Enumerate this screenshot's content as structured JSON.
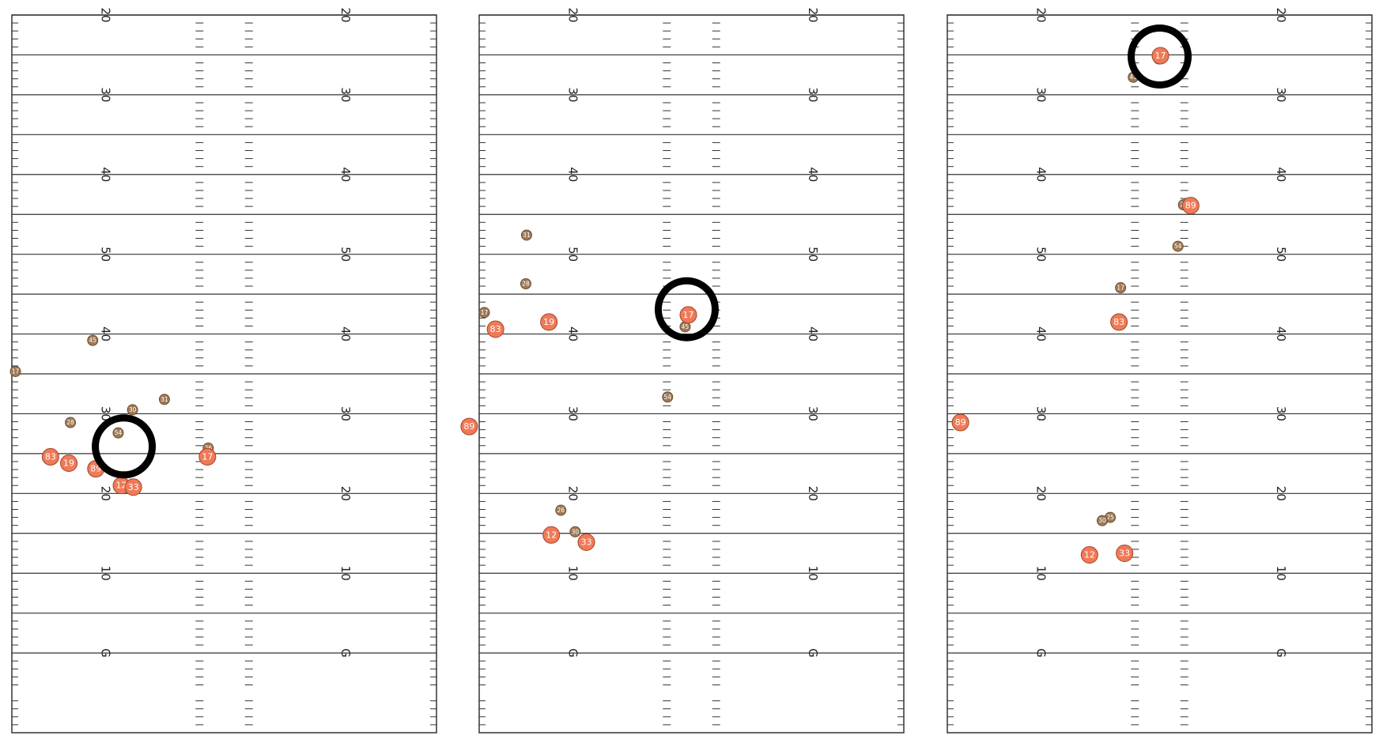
{
  "colors": {
    "offense": "#f07a57",
    "offense_stroke": "#a0432a",
    "defense": "#a07a56",
    "defense_stroke": "#6b4f33",
    "field_line": "#333333",
    "highlight_ring": "#000000"
  },
  "chart_data": [
    {
      "type": "scatter",
      "title": "",
      "yard_labels": [
        "G",
        "10",
        "20",
        "30",
        "40",
        "50",
        "40",
        "30",
        "20",
        "10"
      ],
      "highlight": {
        "x": 12.6,
        "y": 25.9
      },
      "offense": [
        {
          "label": "83",
          "x": 21.8,
          "y": 24.6
        },
        {
          "label": "19",
          "x": 19.5,
          "y": 23.8
        },
        {
          "label": "89",
          "x": 16.1,
          "y": 23.1
        },
        {
          "label": "12",
          "x": 12.9,
          "y": 21.0
        },
        {
          "label": "33",
          "x": 11.4,
          "y": 20.8
        },
        {
          "label": "17",
          "x": 2.1,
          "y": 24.6
        }
      ],
      "defense": [
        {
          "label": "17",
          "x": 26.2,
          "y": 35.3
        },
        {
          "label": "28",
          "x": 19.3,
          "y": 28.9
        },
        {
          "label": "45",
          "x": 16.5,
          "y": 39.2
        },
        {
          "label": "54",
          "x": 13.3,
          "y": 27.6
        },
        {
          "label": "30",
          "x": 11.5,
          "y": 30.5
        },
        {
          "label": "31",
          "x": 7.5,
          "y": 31.8
        },
        {
          "label": "26",
          "x": 2.0,
          "y": 25.7
        }
      ]
    },
    {
      "type": "scatter",
      "title": "",
      "yard_labels": [
        "G",
        "10",
        "20",
        "30",
        "40",
        "50",
        "40",
        "30",
        "20",
        "10"
      ],
      "highlight": {
        "x": 0.6,
        "y": 43.1
      },
      "offense": [
        {
          "label": "83",
          "x": 24.6,
          "y": 40.6
        },
        {
          "label": "19",
          "x": 17.9,
          "y": 41.5
        },
        {
          "label": "17",
          "x": 0.4,
          "y": 42.4
        },
        {
          "label": "89",
          "x": 27.9,
          "y": 28.4
        },
        {
          "label": "12",
          "x": 17.6,
          "y": 14.8
        },
        {
          "label": "33",
          "x": 13.2,
          "y": 13.9
        }
      ],
      "defense": [
        {
          "label": "31",
          "x": 20.7,
          "y": 52.4
        },
        {
          "label": "28",
          "x": 20.8,
          "y": 46.3
        },
        {
          "label": "17",
          "x": 26.0,
          "y": 42.7
        },
        {
          "label": "45",
          "x": 0.8,
          "y": 40.9
        },
        {
          "label": "54",
          "x": 3.0,
          "y": 32.1
        },
        {
          "label": "26",
          "x": 16.4,
          "y": 17.9
        },
        {
          "label": "30",
          "x": 14.6,
          "y": 15.2
        }
      ]
    },
    {
      "type": "scatter",
      "title": "",
      "yard_labels": [
        "G",
        "10",
        "20",
        "30",
        "40",
        "50",
        "40",
        "30",
        "20",
        "10"
      ],
      "highlight": {
        "x": 0.0,
        "y": 74.8
      },
      "offense": [
        {
          "label": "17",
          "x": -0.1,
          "y": 74.9
        },
        {
          "label": "89",
          "x": -3.9,
          "y": 56.1
        },
        {
          "label": "83",
          "x": 5.1,
          "y": 41.5
        },
        {
          "label": "89",
          "x": 25.0,
          "y": 28.9
        },
        {
          "label": "12",
          "x": 8.8,
          "y": 12.3
        },
        {
          "label": "33",
          "x": 4.4,
          "y": 12.5
        }
      ],
      "defense": [
        {
          "label": "26",
          "x": 0.1,
          "y": 74.5
        },
        {
          "label": "43",
          "x": 3.3,
          "y": 72.2
        },
        {
          "label": "28",
          "x": -3.0,
          "y": 56.2
        },
        {
          "label": "54",
          "x": -2.3,
          "y": 51.0
        },
        {
          "label": "17",
          "x": 4.9,
          "y": 45.8
        },
        {
          "label": "25",
          "x": 6.2,
          "y": 17.0
        },
        {
          "label": "30",
          "x": 7.2,
          "y": 16.6
        }
      ]
    }
  ]
}
